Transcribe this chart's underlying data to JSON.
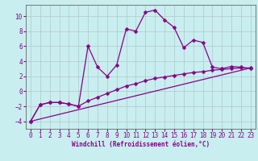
{
  "xlabel": "Windchill (Refroidissement éolien,°C)",
  "background_color": "#c8eef0",
  "grid_color": "#b0c8ca",
  "line_color": "#880088",
  "spine_color": "#666666",
  "xlim": [
    -0.5,
    23.5
  ],
  "ylim": [
    -5.0,
    11.5
  ],
  "yticks": [
    -4,
    -2,
    0,
    2,
    4,
    6,
    8,
    10
  ],
  "xticks": [
    0,
    1,
    2,
    3,
    4,
    5,
    6,
    7,
    8,
    9,
    10,
    11,
    12,
    13,
    14,
    15,
    16,
    17,
    18,
    19,
    20,
    21,
    22,
    23
  ],
  "curve1_x": [
    0,
    1,
    2,
    3,
    4,
    5,
    6,
    7,
    8,
    9,
    10,
    11,
    12,
    13,
    14,
    15,
    16,
    17,
    18,
    19,
    20,
    21,
    22,
    23
  ],
  "curve1_y": [
    -4.0,
    -1.8,
    -1.5,
    -1.5,
    -1.7,
    -2.0,
    6.0,
    3.2,
    2.0,
    3.5,
    8.3,
    8.0,
    10.5,
    10.8,
    9.5,
    8.5,
    5.8,
    6.8,
    6.5,
    3.2,
    3.0,
    3.3,
    3.2,
    3.0
  ],
  "curve2_x": [
    0,
    1,
    2,
    3,
    4,
    5,
    6,
    7,
    8,
    9,
    10,
    11,
    12,
    13,
    14,
    15,
    16,
    17,
    18,
    19,
    20,
    21,
    22,
    23
  ],
  "curve2_y": [
    -4.0,
    -1.8,
    -1.5,
    -1.5,
    -1.7,
    -2.0,
    -1.3,
    -0.8,
    -0.3,
    0.2,
    0.7,
    1.0,
    1.4,
    1.7,
    1.9,
    2.1,
    2.3,
    2.5,
    2.6,
    2.8,
    2.9,
    3.0,
    3.1,
    3.1
  ],
  "curve3_x": [
    0,
    23
  ],
  "curve3_y": [
    -4.0,
    3.1
  ]
}
